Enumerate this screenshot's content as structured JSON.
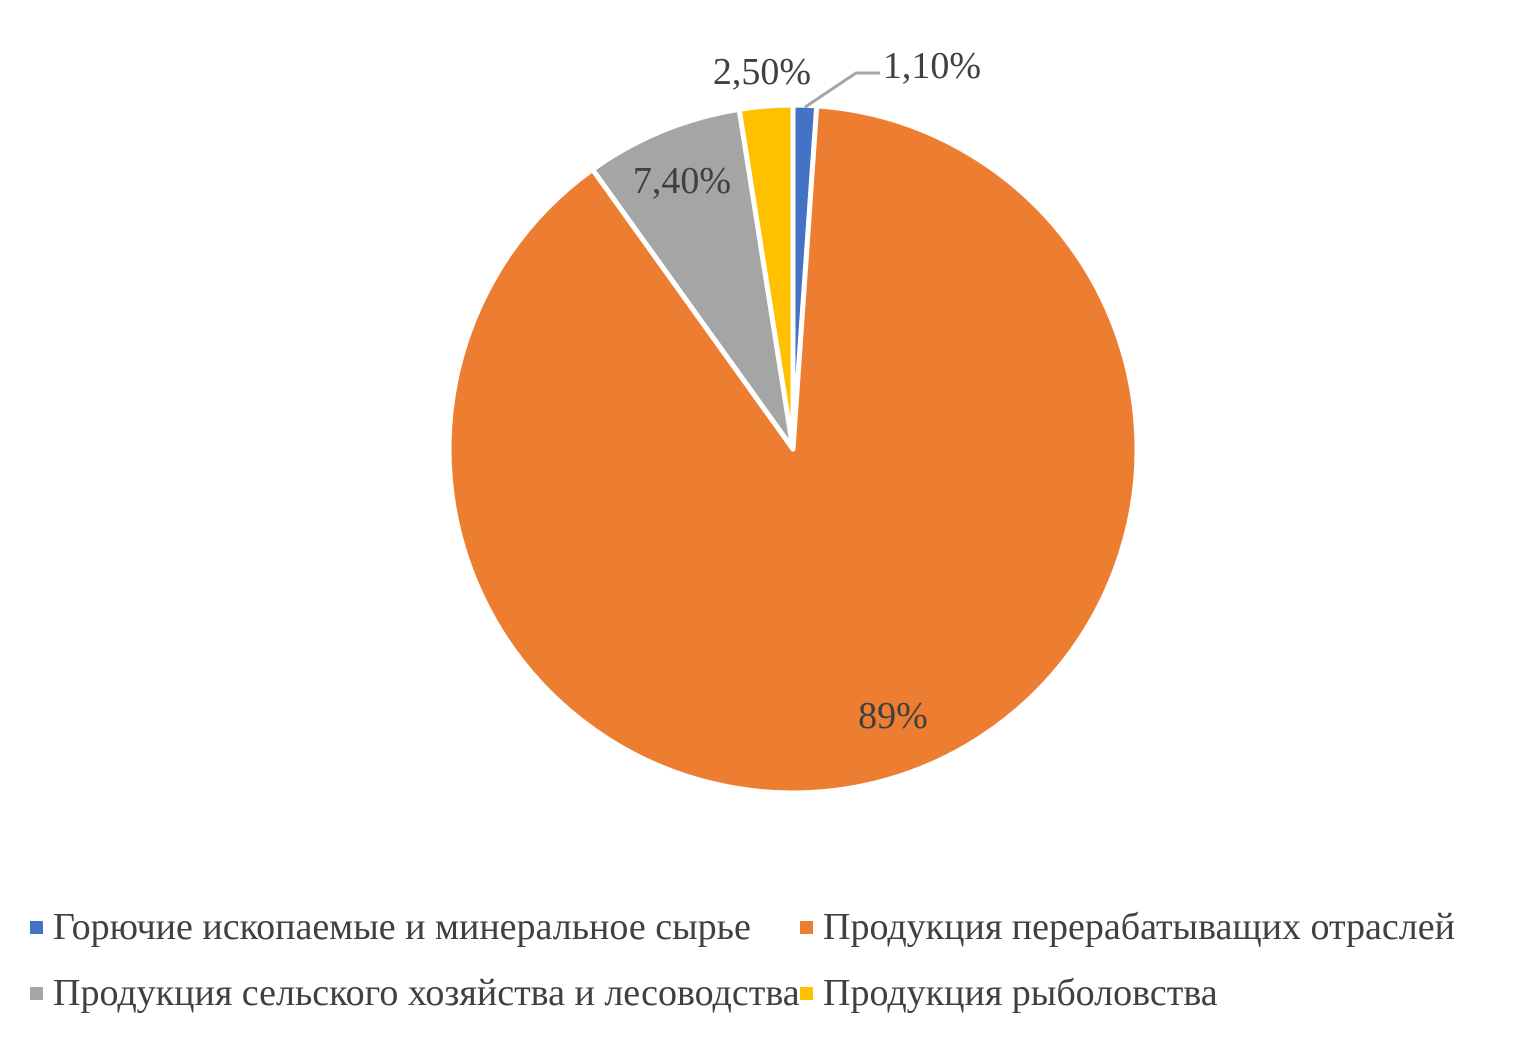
{
  "chart_data": {
    "type": "pie",
    "title": "",
    "categories": [
      "Горючие ископаемые и минеральное сырье",
      "Продукция перерабатыващих отраслей",
      "Продукция сельского хозяйства и лесоводства",
      "Продукция рыболовства"
    ],
    "values": [
      1.1,
      89,
      7.4,
      2.5
    ],
    "labels": [
      "1,10%",
      "89%",
      "7,40%",
      "2,50%"
    ],
    "colors": [
      "#4472C4",
      "#ED7D31",
      "#A5A5A5",
      "#FFC000"
    ],
    "legend_position": "bottom",
    "start_angle": "top",
    "direction": "clockwise"
  }
}
